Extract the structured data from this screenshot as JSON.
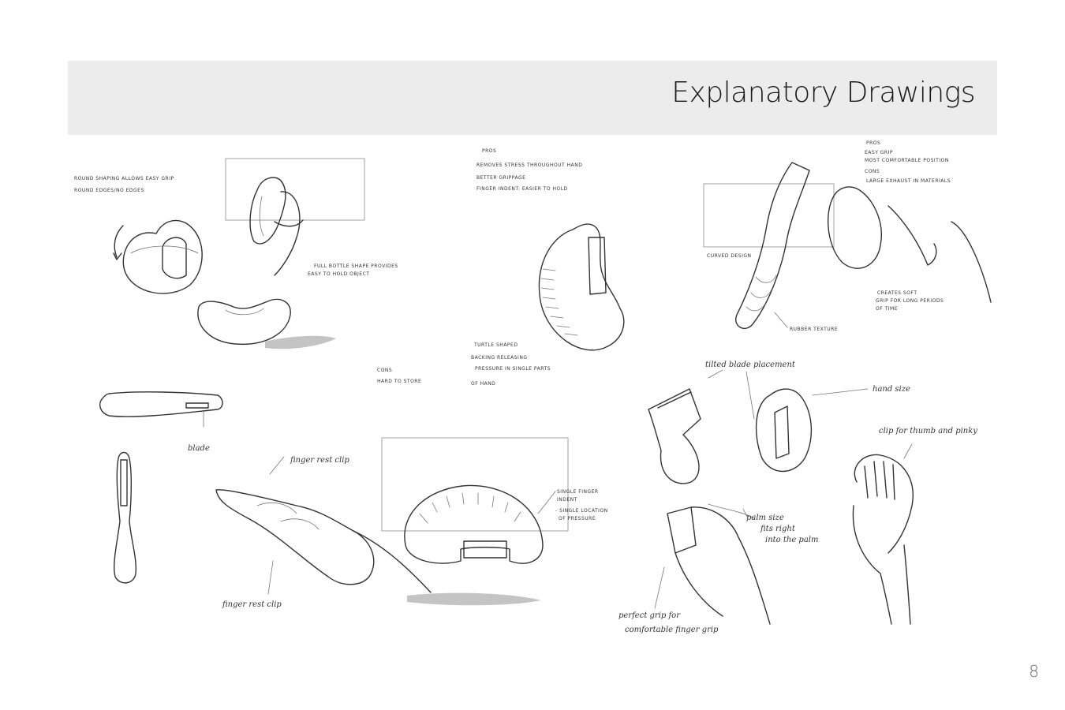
{
  "header": {
    "title": "Explanatory Drawings"
  },
  "footer": {
    "page_number": "8"
  },
  "annotations": {
    "top_left_line1": "ROUND SHAPING ALLOWS EASY GRIP",
    "top_left_line2": "ROUND EDGES/NO EDGES",
    "bottle_note_1": "FULL BOTTLE SHAPE PROVIDES",
    "bottle_note_2": "EASY TO HOLD OBJECT",
    "cons_heading": "CONS",
    "cons_text": "HARD TO STORE",
    "pros_heading": "PROS",
    "pros_line1": "REMOVES STRESS THROUGHOUT HAND",
    "pros_line2": "BETTER GRIPPAGE",
    "pros_line3": "FINGER INDENT: EASIER TO HOLD",
    "turtle_1": "TURTLE SHAPED",
    "turtle_2": "BACKING RELEASING",
    "turtle_3": "PRESSURE IN SINGLE PARTS",
    "turtle_4": "OF HAND",
    "right_pros": "PROS",
    "right_pros_1": "EASY GRIP",
    "right_pros_2": "MOST COMFORTABLE POSITION",
    "right_cons": "CONS",
    "right_cons_1": "LARGE EXHAUST IN MATERIALS",
    "curved_design": "CURVED DESIGN",
    "created_soft_1": "CREATES SOFT",
    "created_soft_2": "GRIP FOR LONG PERIODS",
    "created_soft_3": "OF TIME",
    "rubber_texture": "RUBBER TEXTURE",
    "blade": "blade",
    "finger_rest_top": "finger rest clip",
    "finger_rest_bottom": "finger rest clip",
    "single_finger_1": "SINGLE FINGER",
    "single_finger_2": "INDENT",
    "single_location_1": "- SINGLE LOCATION",
    "single_location_2": "OF PRESSURE",
    "tilted_blade": "tilted blade placement",
    "hand_size": "hand size",
    "clip_thumb": "clip for thumb and pinky",
    "palm_size_1": "palm size",
    "palm_size_2": "fits right",
    "palm_size_3": "into the palm",
    "perfect_grip_1": "perfect grip for",
    "perfect_grip_2": "comfortable finger grip"
  }
}
